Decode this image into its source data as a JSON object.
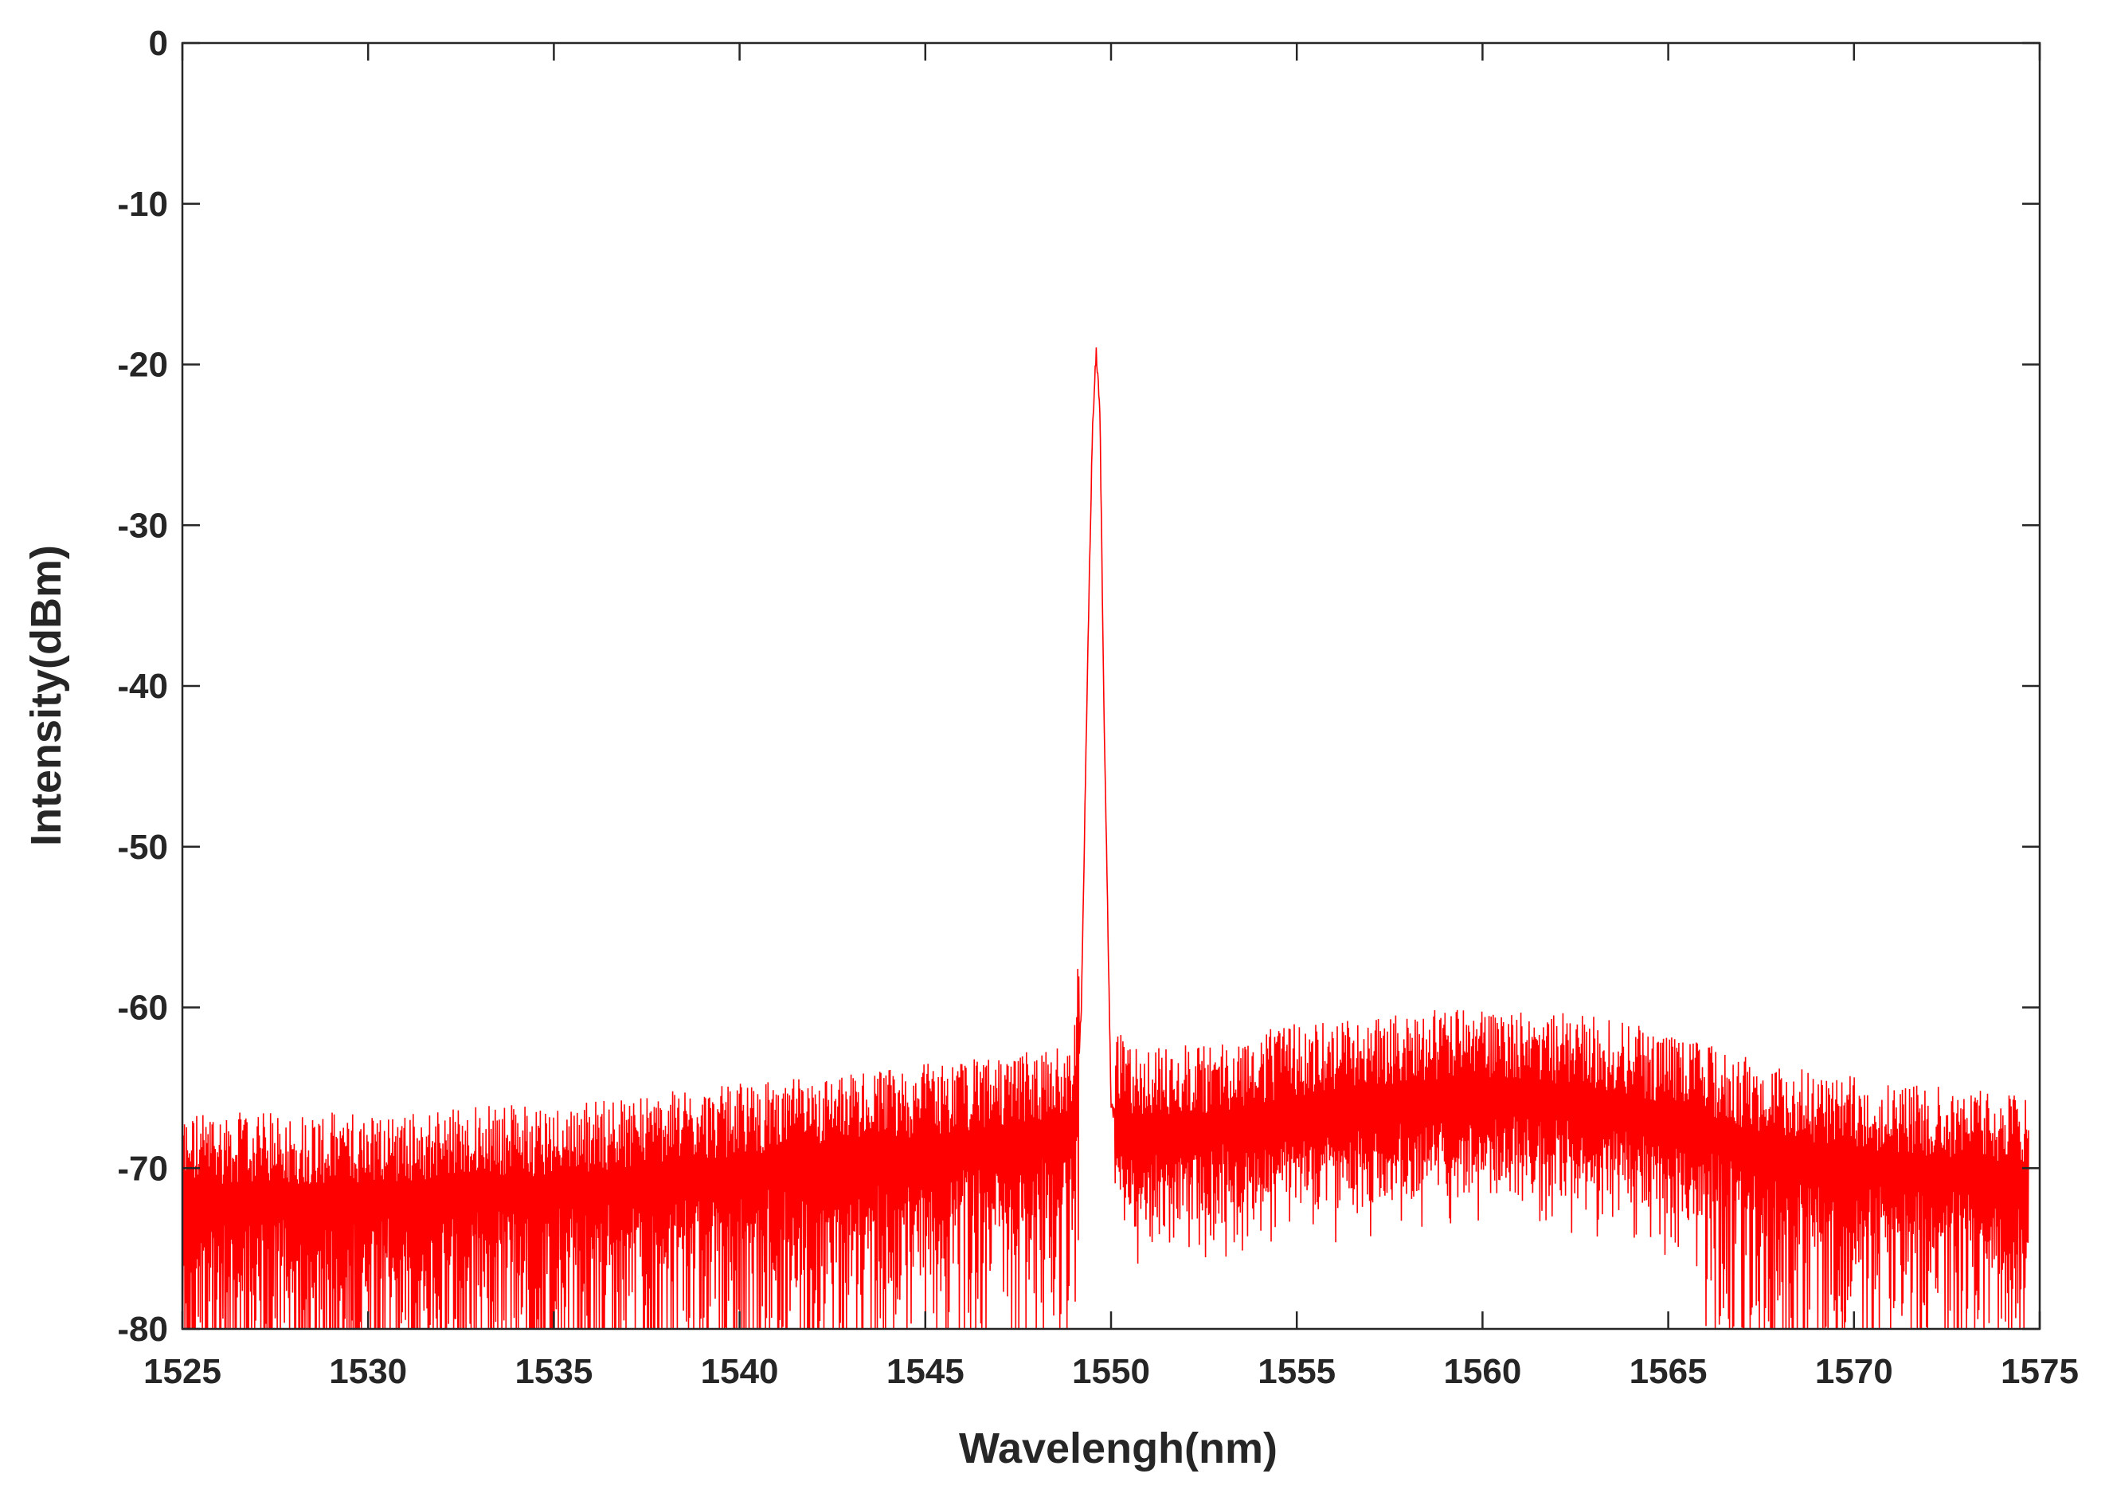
{
  "chart_data": {
    "type": "line",
    "title": "",
    "xlabel": "Wavelengh(nm)",
    "ylabel": "Intensity(dBm)",
    "xlim": [
      1525,
      1575
    ],
    "ylim": [
      -80,
      0
    ],
    "xticks": [
      1525,
      1530,
      1535,
      1540,
      1545,
      1550,
      1555,
      1560,
      1565,
      1570,
      1575
    ],
    "yticks": [
      0,
      -10,
      -20,
      -30,
      -40,
      -50,
      -60,
      -70,
      -80
    ],
    "grid": false,
    "legend": "none",
    "series": [
      {
        "color": "#ff0000",
        "peak": {
          "x": 1549.6,
          "y": -19.2
        },
        "x": [
          1525,
          1527,
          1529,
          1531,
          1533,
          1535,
          1537,
          1539,
          1541,
          1543,
          1545,
          1547,
          1548.5,
          1549.0,
          1549.2,
          1549.4,
          1549.5,
          1549.6,
          1549.7,
          1549.8,
          1550.0,
          1550.3,
          1551,
          1553,
          1555,
          1557,
          1559,
          1561,
          1563,
          1565,
          1567,
          1569,
          1571,
          1573,
          1574.7
        ],
        "y": [
          -73,
          -73,
          -73,
          -73,
          -72.5,
          -72.5,
          -72,
          -71.5,
          -71,
          -70.5,
          -70,
          -69.5,
          -69,
          -68.5,
          -60,
          -35,
          -24,
          -19.2,
          -23,
          -40,
          -66,
          -68.5,
          -69,
          -68.5,
          -67.5,
          -67,
          -66.5,
          -66.5,
          -67,
          -68,
          -69.5,
          -70.5,
          -71,
          -71.5,
          -72
        ]
      }
    ]
  }
}
